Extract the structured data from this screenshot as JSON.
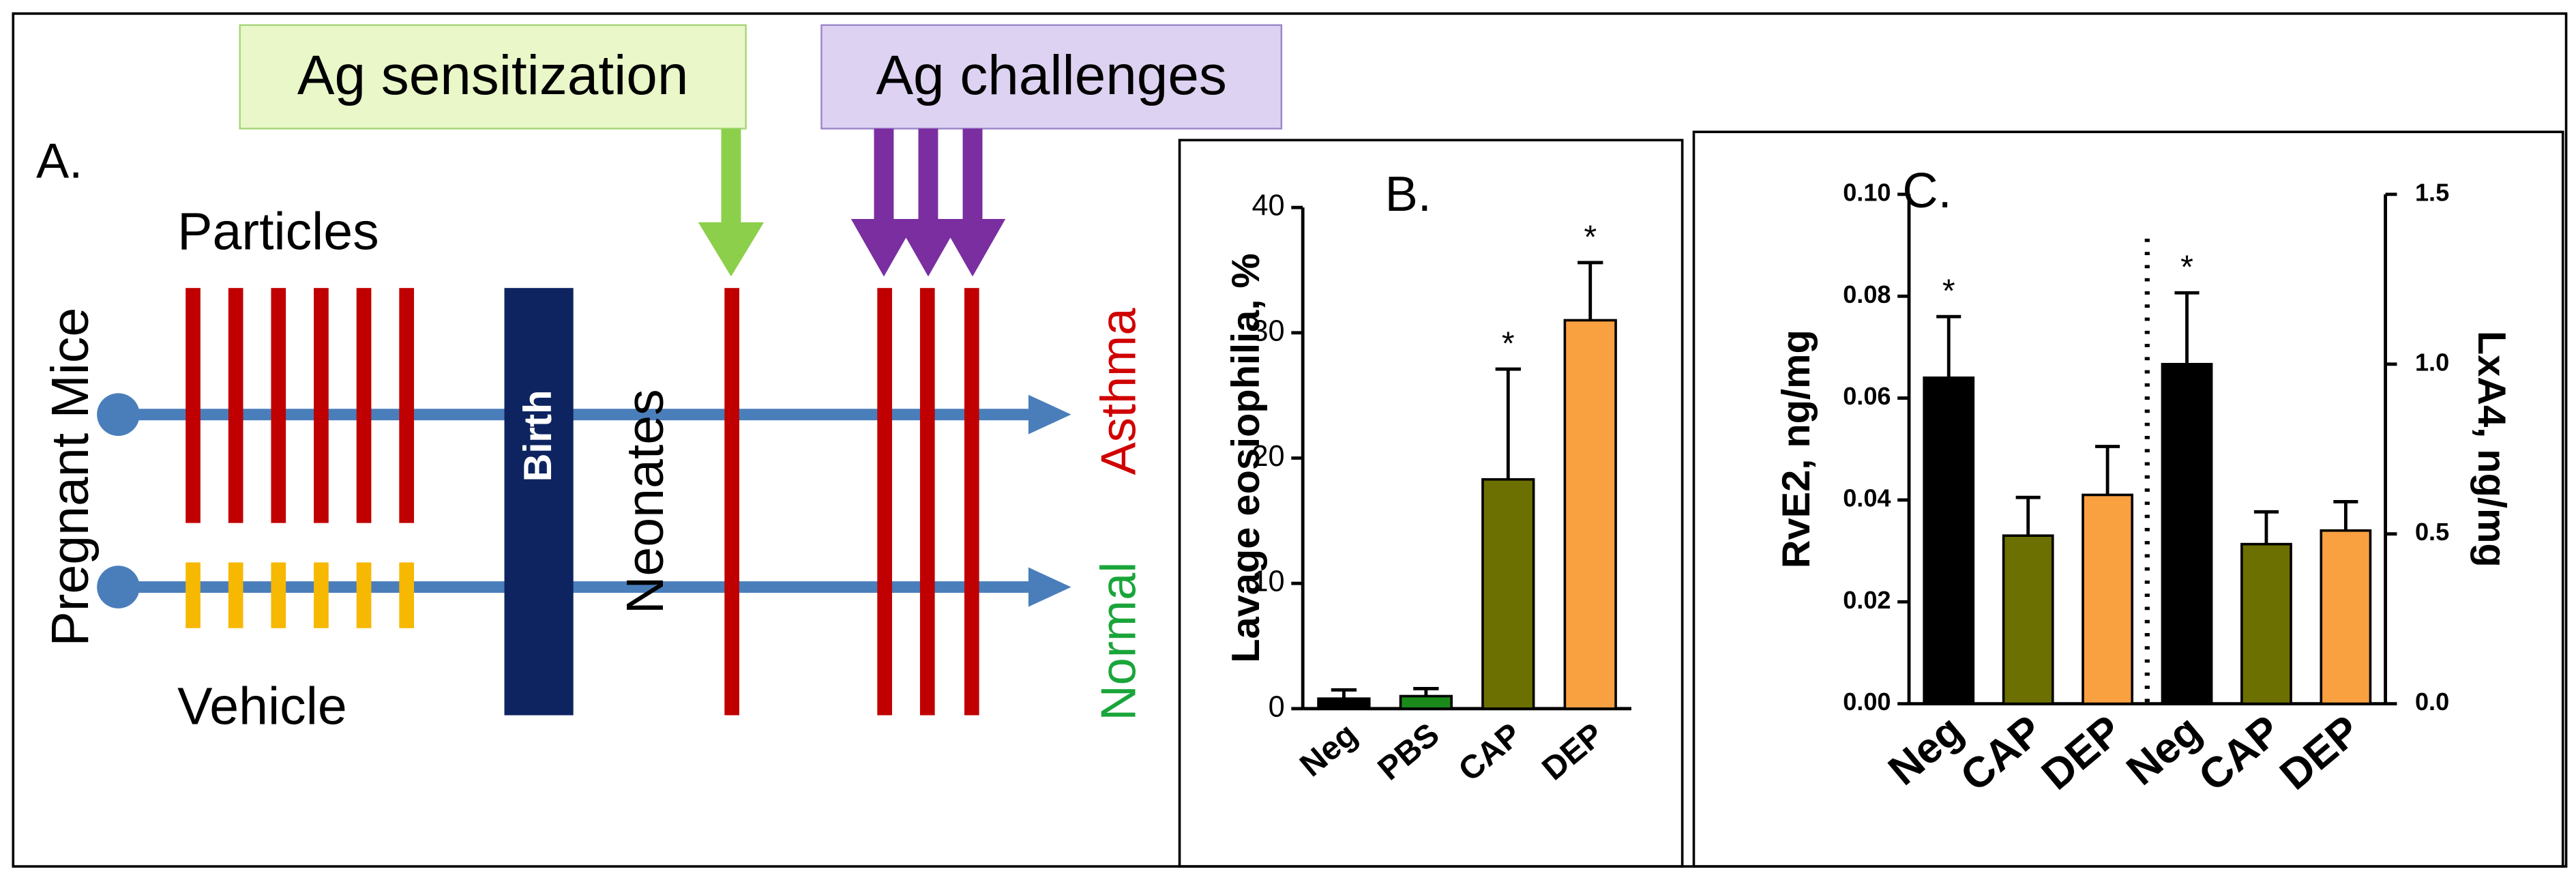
{
  "diagram": {
    "panel_label": "A.",
    "sensitization": "Ag sensitization",
    "challenges": "Ag challenges",
    "particles": "Particles",
    "vehicle": "Vehicle",
    "pregnant": "Pregnant Mice",
    "birth": "Birth",
    "neonates": "Neonates",
    "asthma": "Asthma",
    "normal": "Normal"
  },
  "chart_data": [
    {
      "type": "bar",
      "title": "B.",
      "y_label": "Lavage eosiophilia, %",
      "categories": [
        "Neg",
        "PBS",
        "CAP",
        "DEP"
      ],
      "values": [
        0.8,
        1.0,
        18.3,
        31.0
      ],
      "errors": [
        0.7,
        0.6,
        8.8,
        4.6
      ],
      "colors": [
        "#000000",
        "#1a8a1a",
        "#6b7000",
        "#f9a040"
      ],
      "markers": [
        null,
        null,
        "*",
        "*"
      ],
      "ylim": [
        0,
        40
      ],
      "yticks": [
        0,
        10,
        20,
        30,
        40
      ]
    },
    {
      "type": "bar",
      "title": "C.",
      "y_label": "RvE2, ng/mg",
      "y2_label": "LxA4, ng/mg",
      "categories": [
        "Neg",
        "CAP",
        "DEP",
        "Neg",
        "CAP",
        "DEP"
      ],
      "series": [
        {
          "axis": "y",
          "values": [
            0.064,
            0.033,
            0.041,
            null,
            null,
            null
          ],
          "errors": [
            0.012,
            0.0075,
            0.0095,
            null,
            null,
            null
          ],
          "colors": [
            "#000000",
            "#6b7000",
            "#f9a040",
            null,
            null,
            null
          ],
          "markers": [
            "*",
            null,
            null,
            null,
            null,
            null
          ]
        },
        {
          "axis": "y2",
          "values": [
            null,
            null,
            null,
            1.0,
            0.47,
            0.51
          ],
          "errors": [
            null,
            null,
            null,
            0.21,
            0.095,
            0.085
          ],
          "colors": [
            null,
            null,
            null,
            "#000000",
            "#6b7000",
            "#f9a040"
          ],
          "markers": [
            null,
            null,
            null,
            "*",
            null,
            null
          ]
        }
      ],
      "ylim": [
        0,
        0.1
      ],
      "yticks": [
        {
          "value": 0,
          "label": "0.00"
        },
        {
          "value": 0.02,
          "label": "0.02"
        },
        {
          "value": 0.04,
          "label": "0.04"
        },
        {
          "value": 0.06,
          "label": "0.06"
        },
        {
          "value": 0.08,
          "label": "0.08"
        },
        {
          "value": 0.1,
          "label": "0.10"
        }
      ],
      "y2lim": [
        0,
        1.5
      ],
      "y2ticks": [
        {
          "value": 0,
          "label": "0.0"
        },
        0.5,
        {
          "value": 1,
          "label": "1.0"
        },
        1.5
      ]
    }
  ]
}
